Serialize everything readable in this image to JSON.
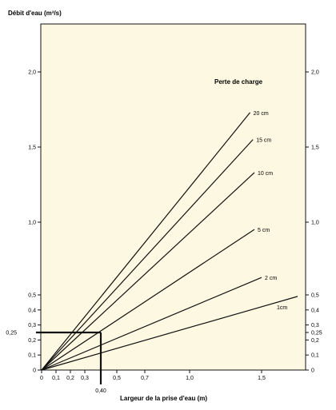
{
  "chart_data": {
    "type": "line",
    "ylabel": "Débit d'eau (m³/s)",
    "xlabel": "Largeur de la prise d'eau (m)",
    "legend_title": "Perte de charge",
    "x_ticks": [
      "0",
      "0,1",
      "0,2",
      "0,3",
      "0,5",
      "0,7",
      "1,0",
      "1,5"
    ],
    "x_tick_values": [
      0,
      0.1,
      0.2,
      0.3,
      0.5,
      0.7,
      1.0,
      1.5
    ],
    "y_ticks_left": [
      "0",
      "0,1",
      "0,2",
      "0,3",
      "0,4",
      "0,5",
      "1,0",
      "1,5",
      "2,0"
    ],
    "y_ticks_right": [
      "0",
      "0,1",
      "0,2",
      "0,25",
      "0,3",
      "0,4",
      "0,5",
      "1,0",
      "1,5",
      "2,0"
    ],
    "y_tick_values_left": [
      0,
      0.1,
      0.2,
      0.3,
      0.4,
      0.5,
      1.0,
      1.5,
      2.0
    ],
    "y_tick_values_right": [
      0,
      0.1,
      0.2,
      0.25,
      0.3,
      0.4,
      0.5,
      1.0,
      1.5,
      2.0
    ],
    "series": [
      {
        "name": "20 cm",
        "x": [
          0,
          1.42
        ],
        "y": [
          0,
          1.73
        ]
      },
      {
        "name": "15 cm",
        "x": [
          0,
          1.44
        ],
        "y": [
          0,
          1.55
        ]
      },
      {
        "name": "10 cm",
        "x": [
          0,
          1.45
        ],
        "y": [
          0,
          1.33
        ]
      },
      {
        "name": "5 cm",
        "x": [
          0,
          1.45
        ],
        "y": [
          0,
          0.95
        ]
      },
      {
        "name": "2 cm",
        "x": [
          0,
          1.5
        ],
        "y": [
          0,
          0.62
        ]
      },
      {
        "name": "1cm",
        "x": [
          0,
          1.75
        ],
        "y": [
          0,
          0.49
        ]
      }
    ],
    "annotation": {
      "x": 0.4,
      "y": 0.25,
      "x_label": "0,40",
      "y_label": "0,25"
    },
    "xlim": [
      0,
      1.8
    ],
    "ylim": [
      0,
      2.3
    ],
    "grid": false
  }
}
